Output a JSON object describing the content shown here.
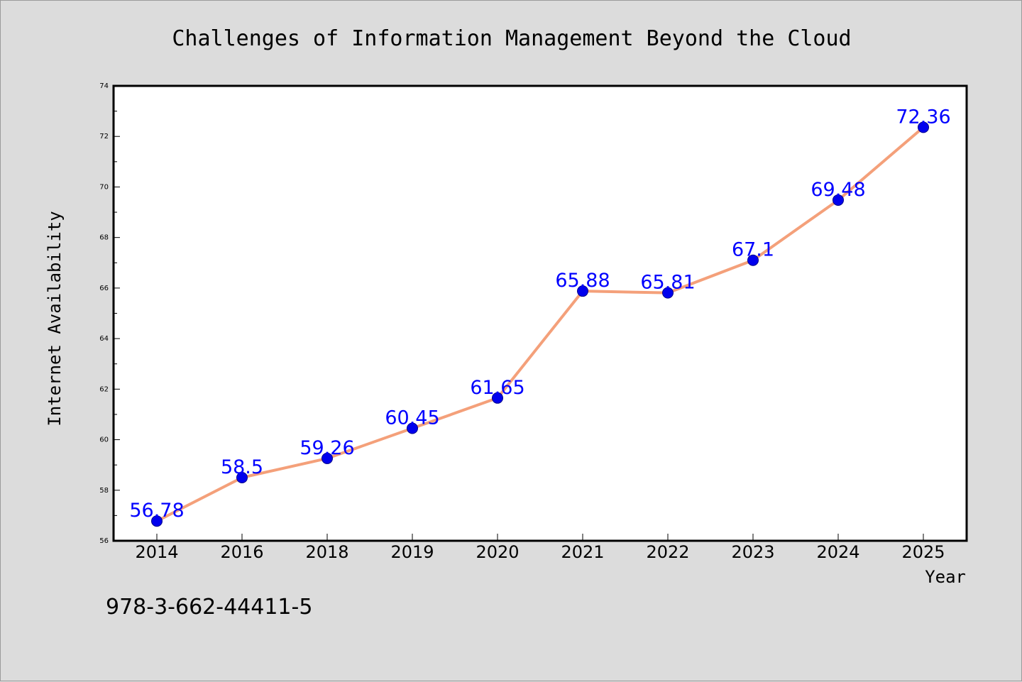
{
  "chart_data": {
    "type": "line",
    "title": "Challenges of Information Management Beyond the Cloud",
    "xlabel": "Year",
    "ylabel": "Internet Availability",
    "categories": [
      "2014",
      "2016",
      "2018",
      "2019",
      "2020",
      "2021",
      "2022",
      "2023",
      "2024",
      "2025"
    ],
    "series": [
      {
        "values": [
          56.78,
          58.5,
          59.26,
          60.45,
          61.65,
          65.88,
          65.81,
          67.1,
          69.48,
          72.36
        ],
        "labels": [
          "56.78",
          "58.5",
          "59.26",
          "60.45",
          "61.65",
          "65.88",
          "65.81",
          "67.1",
          "69.48",
          "72.36"
        ],
        "line_color": "#f4a07a",
        "marker_color": "#0000ee"
      }
    ],
    "ylim": [
      56,
      74
    ],
    "yticks": [
      56,
      58,
      60,
      62,
      64,
      66,
      68,
      70,
      72,
      74
    ],
    "grid": false,
    "legend": "none",
    "label_color": "#0000ff",
    "background_color": "#dcdcdc",
    "plot_background": "#ffffff"
  },
  "annotation": {
    "isbn": "978-3-662-44411-5"
  }
}
